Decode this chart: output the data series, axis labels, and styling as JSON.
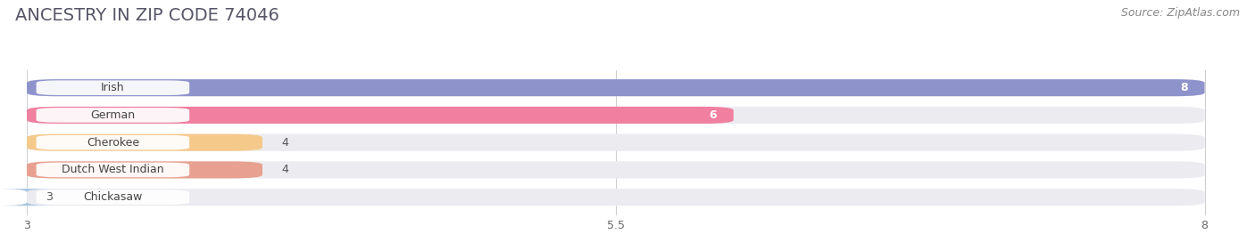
{
  "title": "ANCESTRY IN ZIP CODE 74046",
  "source": "Source: ZipAtlas.com",
  "categories": [
    "Irish",
    "German",
    "Cherokee",
    "Dutch West Indian",
    "Chickasaw"
  ],
  "values": [
    8,
    6,
    4,
    4,
    3
  ],
  "bar_colors": [
    "#8f93cc",
    "#f07fa0",
    "#f5c98a",
    "#e8a090",
    "#a8c4e0"
  ],
  "bar_bg_color": "#ebebf0",
  "label_bg_color": "#ffffff",
  "xlim_data": [
    3,
    8
  ],
  "xticks": [
    3,
    5.5,
    8
  ],
  "background_color": "#ffffff",
  "title_fontsize": 14,
  "source_fontsize": 9,
  "label_fontsize": 9,
  "value_fontsize": 9,
  "bar_height": 0.62,
  "value_color_inside": "#ffffff",
  "value_color_outside": "#555555",
  "title_color": "#555566",
  "source_color": "#888888"
}
